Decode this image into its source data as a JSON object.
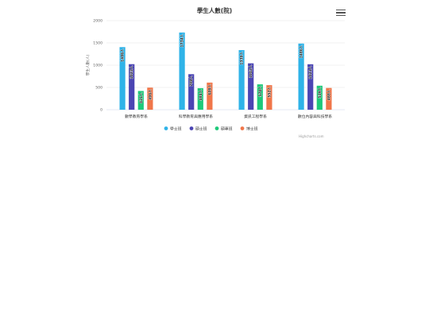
{
  "menu": {
    "icon": "hamburger-menu-icon"
  },
  "credits": "Highcharts.com",
  "chart_data": {
    "type": "bar",
    "title": "學生人數(院)",
    "ylabel": "學生人數(人)",
    "xlabel": "",
    "ylim": [
      0,
      2000
    ],
    "yticks": [
      0,
      500,
      1000,
      1500,
      2000
    ],
    "grid": true,
    "legend_placement": "bottom-center",
    "categories": [
      "數學教育學系",
      "科學教育與應用學系",
      "資訊工程學系",
      "數位內容與科技學系"
    ],
    "series": [
      {
        "name": "學士班",
        "color": "#2fb3e8",
        "values": [
          1406,
          1734,
          1339,
          1486
        ],
        "labels": [
          "1406人",
          "1734人",
          "1339人",
          "1486人"
        ]
      },
      {
        "name": "碩士班",
        "color": "#4b45b3",
        "values": [
          1023,
          798,
          1042,
          1021
        ],
        "labels": [
          "1023人",
          "798人",
          "1042人",
          "1021人"
        ]
      },
      {
        "name": "碩專班",
        "color": "#1ec97a",
        "values": [
          421,
          484,
          570,
          539
        ],
        "labels": [
          "421人",
          "484人",
          "570人",
          "539人"
        ]
      },
      {
        "name": "博士班",
        "color": "#f0764a",
        "values": [
          496,
          609,
          552,
          488
        ],
        "labels": [
          "496人",
          "609人",
          "552人",
          "488人"
        ]
      }
    ]
  }
}
